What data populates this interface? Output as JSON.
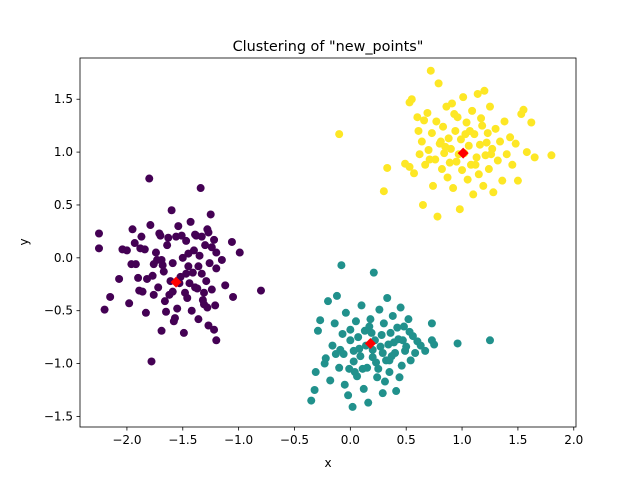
{
  "chart_data": {
    "type": "scatter",
    "title": "Clustering of \"new_points\"",
    "xlabel": "x",
    "ylabel": "y",
    "xlim": [
      -2.42,
      2.02
    ],
    "ylim": [
      -1.6,
      1.89
    ],
    "xticks": [
      -2.0,
      -1.5,
      -1.0,
      -0.5,
      0.0,
      0.5,
      1.0,
      1.5,
      2.0
    ],
    "xtick_labels": [
      "−2.0",
      "−1.5",
      "−1.0",
      "−0.5",
      "0.0",
      "0.5",
      "1.0",
      "1.5",
      "2.0"
    ],
    "yticks": [
      -1.5,
      -1.0,
      -0.5,
      0.0,
      0.5,
      1.0,
      1.5
    ],
    "ytick_labels": [
      "−1.5",
      "−1.0",
      "−0.5",
      "0.0",
      "0.5",
      "1.0",
      "1.5"
    ],
    "grid": false,
    "colors": {
      "cluster_0": "#440154",
      "cluster_1": "#21918c",
      "cluster_2": "#fde725",
      "centroid": "#ff0000"
    },
    "series": [
      {
        "color": "#440154",
        "points": [
          [
            -2.25,
            0.23
          ],
          [
            -2.25,
            0.09
          ],
          [
            -2.2,
            -0.49
          ],
          [
            -2.15,
            -0.37
          ],
          [
            -2.07,
            -0.2
          ],
          [
            -2.04,
            0.08
          ],
          [
            -1.98,
            -0.43
          ],
          [
            -1.96,
            -0.06
          ],
          [
            -1.95,
            0.27
          ],
          [
            -1.93,
            0.14
          ],
          [
            -1.9,
            -0.19
          ],
          [
            -1.89,
            -0.31
          ],
          [
            -1.87,
            0.2
          ],
          [
            -1.84,
            0.08
          ],
          [
            -1.83,
            -0.52
          ],
          [
            -1.8,
            0.75
          ],
          [
            -1.79,
            0.31
          ],
          [
            -1.78,
            -0.98
          ],
          [
            -1.77,
            -0.17
          ],
          [
            -1.76,
            -0.35
          ],
          [
            -1.74,
            0.05
          ],
          [
            -1.72,
            -0.28
          ],
          [
            -1.7,
            0.21
          ],
          [
            -1.69,
            -0.69
          ],
          [
            -1.67,
            -0.13
          ],
          [
            -1.65,
            -0.51
          ],
          [
            -1.64,
            0.12
          ],
          [
            -1.62,
            -0.35
          ],
          [
            -1.6,
            0.45
          ],
          [
            -1.59,
            -0.05
          ],
          [
            -1.58,
            -0.6
          ],
          [
            -1.56,
            0.2
          ],
          [
            -1.55,
            -0.48
          ],
          [
            -1.54,
            0.3
          ],
          [
            -1.52,
            -0.18
          ],
          [
            -1.5,
            0.0
          ],
          [
            -1.49,
            -0.71
          ],
          [
            -1.47,
            0.16
          ],
          [
            -1.46,
            -0.38
          ],
          [
            -1.45,
            -0.08
          ],
          [
            -1.43,
            0.34
          ],
          [
            -1.42,
            -0.5
          ],
          [
            -1.4,
            0.07
          ],
          [
            -1.39,
            -0.28
          ],
          [
            -1.38,
            0.21
          ],
          [
            -1.36,
            -0.58
          ],
          [
            -1.35,
            0.02
          ],
          [
            -1.34,
            0.66
          ],
          [
            -1.33,
            -0.15
          ],
          [
            -1.32,
            -0.4
          ],
          [
            -1.3,
            0.12
          ],
          [
            -1.29,
            -0.22
          ],
          [
            -1.28,
            0.27
          ],
          [
            -1.27,
            -0.64
          ],
          [
            -1.26,
            -0.05
          ],
          [
            -1.25,
            0.41
          ],
          [
            -1.24,
            -0.3
          ],
          [
            -1.22,
            0.17
          ],
          [
            -1.21,
            -0.45
          ],
          [
            -1.2,
            -0.1
          ],
          [
            -1.2,
            0.05
          ],
          [
            -1.2,
            -0.78
          ],
          [
            -1.15,
            -0.02
          ],
          [
            -1.12,
            -0.26
          ],
          [
            -1.06,
            0.15
          ],
          [
            -1.05,
            -0.37
          ],
          [
            -0.99,
            0.05
          ],
          [
            -0.8,
            -0.31
          ],
          [
            -2.0,
            0.07
          ],
          [
            -1.88,
            0.09
          ],
          [
            -1.82,
            -0.2
          ],
          [
            -1.73,
            -0.02
          ],
          [
            -1.68,
            -0.07
          ],
          [
            -1.63,
            0.19
          ],
          [
            -1.61,
            -0.22
          ],
          [
            -1.57,
            -0.57
          ],
          [
            -1.53,
            -0.24
          ],
          [
            -1.48,
            -0.33
          ],
          [
            -1.44,
            -0.24
          ],
          [
            -1.41,
            -0.14
          ],
          [
            -1.37,
            -0.29
          ],
          [
            -1.33,
            0.2
          ],
          [
            -1.31,
            -0.33
          ],
          [
            -1.28,
            -0.47
          ],
          [
            -1.24,
            0.1
          ],
          [
            -1.22,
            -0.68
          ],
          [
            -1.69,
            -0.02
          ],
          [
            -1.71,
            0.23
          ],
          [
            -1.86,
            -0.32
          ],
          [
            -1.92,
            -0.06
          ],
          [
            -1.66,
            -0.41
          ],
          [
            -1.47,
            -0.15
          ],
          [
            -1.39,
            0.22
          ],
          [
            -1.51,
            0.21
          ],
          [
            -1.36,
            -0.08
          ],
          [
            -1.27,
            0.24
          ],
          [
            -1.59,
            -0.32
          ],
          [
            -1.45,
            0.04
          ],
          [
            -1.31,
            -0.44
          ],
          [
            -1.76,
            -0.06
          ]
        ]
      },
      {
        "color": "#21918c",
        "points": [
          [
            -0.35,
            -1.35
          ],
          [
            -0.32,
            -1.25
          ],
          [
            -0.31,
            -1.08
          ],
          [
            -0.29,
            -0.69
          ],
          [
            -0.27,
            -0.59
          ],
          [
            -0.23,
            -1.0
          ],
          [
            -0.2,
            -0.41
          ],
          [
            -0.18,
            -1.16
          ],
          [
            -0.16,
            -0.83
          ],
          [
            -0.14,
            -0.62
          ],
          [
            -0.12,
            -0.36
          ],
          [
            -0.1,
            -1.04
          ],
          [
            -0.08,
            -0.07
          ],
          [
            -0.07,
            -0.72
          ],
          [
            -0.06,
            -0.91
          ],
          [
            -0.05,
            -1.2
          ],
          [
            -0.04,
            -0.52
          ],
          [
            -0.02,
            -1.3
          ],
          [
            0.0,
            -0.78
          ],
          [
            0.02,
            -1.41
          ],
          [
            0.03,
            -0.98
          ],
          [
            0.05,
            -0.6
          ],
          [
            0.06,
            -1.12
          ],
          [
            0.08,
            -0.86
          ],
          [
            0.1,
            -0.45
          ],
          [
            0.12,
            -1.24
          ],
          [
            0.13,
            -0.69
          ],
          [
            0.15,
            -1.04
          ],
          [
            0.16,
            -1.37
          ],
          [
            0.18,
            -0.58
          ],
          [
            0.2,
            -0.94
          ],
          [
            0.21,
            -0.14
          ],
          [
            0.22,
            -0.78
          ],
          [
            0.24,
            -1.13
          ],
          [
            0.26,
            -0.49
          ],
          [
            0.27,
            -0.84
          ],
          [
            0.29,
            -1.28
          ],
          [
            0.3,
            -0.62
          ],
          [
            0.32,
            -0.97
          ],
          [
            0.33,
            -0.38
          ],
          [
            0.35,
            -1.08
          ],
          [
            0.36,
            -0.71
          ],
          [
            0.38,
            -0.55
          ],
          [
            0.4,
            -0.9
          ],
          [
            0.41,
            -1.26
          ],
          [
            0.43,
            -0.77
          ],
          [
            0.45,
            -0.47
          ],
          [
            0.46,
            -1.02
          ],
          [
            0.48,
            -0.65
          ],
          [
            0.5,
            -0.84
          ],
          [
            0.52,
            -0.58
          ],
          [
            0.54,
            -0.97
          ],
          [
            0.56,
            -0.74
          ],
          [
            0.58,
            -0.9
          ],
          [
            0.6,
            -0.79
          ],
          [
            0.63,
            -0.83
          ],
          [
            0.67,
            -0.88
          ],
          [
            0.73,
            -0.62
          ],
          [
            0.73,
            -0.78
          ],
          [
            0.75,
            -0.82
          ],
          [
            0.96,
            -0.81
          ],
          [
            1.25,
            -0.78
          ],
          [
            -0.22,
            -0.95
          ],
          [
            -0.13,
            -0.91
          ],
          [
            0.0,
            -0.68
          ],
          [
            0.04,
            -1.08
          ],
          [
            0.09,
            -0.93
          ],
          [
            0.14,
            -0.83
          ],
          [
            0.19,
            -0.71
          ],
          [
            0.23,
            -0.99
          ],
          [
            0.28,
            -0.73
          ],
          [
            0.31,
            -1.17
          ],
          [
            0.34,
            -0.82
          ],
          [
            0.37,
            -0.93
          ],
          [
            0.42,
            -0.66
          ],
          [
            0.44,
            -1.13
          ],
          [
            0.49,
            -0.88
          ],
          [
            0.53,
            -0.7
          ],
          [
            -0.01,
            -1.05
          ],
          [
            0.07,
            -0.75
          ],
          [
            0.11,
            -1.05
          ],
          [
            0.17,
            -0.65
          ],
          [
            0.25,
            -1.05
          ],
          [
            0.39,
            -0.8
          ],
          [
            0.47,
            -0.78
          ],
          [
            -0.09,
            -0.87
          ],
          [
            0.03,
            -0.88
          ],
          [
            0.2,
            -0.87
          ],
          [
            0.35,
            -0.97
          ],
          [
            0.29,
            -0.9
          ]
        ]
      },
      {
        "color": "#fde725",
        "points": [
          [
            -0.1,
            1.17
          ],
          [
            0.3,
            0.63
          ],
          [
            0.33,
            0.85
          ],
          [
            0.49,
            0.89
          ],
          [
            0.53,
            0.86
          ],
          [
            0.53,
            1.47
          ],
          [
            0.55,
            1.5
          ],
          [
            0.57,
            0.8
          ],
          [
            0.6,
            1.33
          ],
          [
            0.61,
            1.2
          ],
          [
            0.62,
            0.98
          ],
          [
            0.64,
            1.1
          ],
          [
            0.65,
            0.5
          ],
          [
            0.67,
            0.88
          ],
          [
            0.69,
            1.37
          ],
          [
            0.7,
            1.02
          ],
          [
            0.72,
            1.77
          ],
          [
            0.73,
            1.18
          ],
          [
            0.74,
            0.68
          ],
          [
            0.76,
            0.93
          ],
          [
            0.77,
            1.29
          ],
          [
            0.78,
            0.39
          ],
          [
            0.79,
            1.65
          ],
          [
            0.8,
            1.08
          ],
          [
            0.82,
            0.84
          ],
          [
            0.83,
            1.24
          ],
          [
            0.84,
            0.99
          ],
          [
            0.86,
            1.43
          ],
          [
            0.87,
            0.76
          ],
          [
            0.88,
            1.13
          ],
          [
            0.9,
            1.03
          ],
          [
            0.91,
            1.46
          ],
          [
            0.92,
            0.66
          ],
          [
            0.94,
            1.2
          ],
          [
            0.95,
            0.91
          ],
          [
            0.96,
            1.33
          ],
          [
            0.98,
            0.46
          ],
          [
            0.99,
            1.12
          ],
          [
            1.0,
            0.83
          ],
          [
            1.01,
            1.52
          ],
          [
            1.02,
            0.99
          ],
          [
            1.04,
            1.28
          ],
          [
            1.05,
            0.74
          ],
          [
            1.06,
            1.06
          ],
          [
            1.08,
            0.88
          ],
          [
            1.09,
            1.39
          ],
          [
            1.1,
            0.6
          ],
          [
            1.11,
            1.17
          ],
          [
            1.13,
            0.95
          ],
          [
            1.14,
            1.55
          ],
          [
            1.15,
            0.79
          ],
          [
            1.16,
            1.07
          ],
          [
            1.18,
            1.25
          ],
          [
            1.19,
            0.68
          ],
          [
            1.2,
            1.58
          ],
          [
            1.21,
            0.97
          ],
          [
            1.23,
            1.18
          ],
          [
            1.24,
            0.84
          ],
          [
            1.25,
            1.43
          ],
          [
            1.27,
            1.03
          ],
          [
            1.28,
            0.62
          ],
          [
            1.3,
            1.22
          ],
          [
            1.32,
            0.92
          ],
          [
            1.34,
            1.1
          ],
          [
            1.36,
            0.73
          ],
          [
            1.38,
            1.29
          ],
          [
            1.4,
            0.98
          ],
          [
            1.43,
            1.14
          ],
          [
            1.45,
            0.88
          ],
          [
            1.48,
            1.08
          ],
          [
            1.5,
            0.73
          ],
          [
            1.53,
            1.36
          ],
          [
            1.55,
            1.4
          ],
          [
            1.58,
            1.0
          ],
          [
            1.62,
            1.28
          ],
          [
            1.65,
            0.95
          ],
          [
            1.8,
            0.97
          ],
          [
            0.66,
            1.3
          ],
          [
            0.71,
            0.93
          ],
          [
            0.81,
            1.1
          ],
          [
            0.85,
            1.05
          ],
          [
            0.89,
            0.9
          ],
          [
            0.93,
            1.36
          ],
          [
            0.97,
            0.98
          ],
          [
            1.03,
            1.17
          ],
          [
            1.07,
            1.2
          ],
          [
            1.12,
            0.88
          ],
          [
            1.17,
            1.32
          ],
          [
            1.22,
            1.09
          ],
          [
            1.26,
            0.98
          ]
        ]
      }
    ],
    "centroids": [
      [
        -1.56,
        -0.23
      ],
      [
        0.18,
        -0.81
      ],
      [
        1.01,
        0.99
      ]
    ]
  }
}
